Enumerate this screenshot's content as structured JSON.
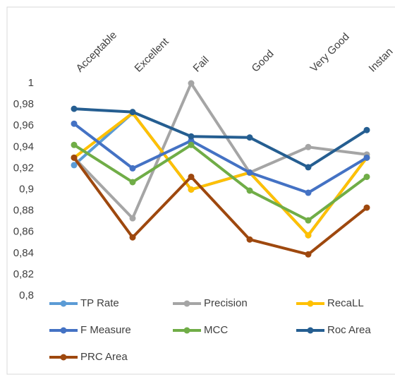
{
  "chart_data": {
    "type": "line",
    "categories": [
      "Acceptable",
      "Excellent",
      "Fail",
      "Good",
      "Very Good",
      "Instan"
    ],
    "series": [
      {
        "name": "TP Rate",
        "color": "#5b9bd5",
        "values": [
          0.923,
          0.972,
          0.9,
          0.916,
          0.857,
          0.93
        ]
      },
      {
        "name": "Precision",
        "color": "#a5a5a5",
        "values": [
          0.93,
          0.873,
          1,
          0.916,
          0.94,
          0.933
        ]
      },
      {
        "name": "RecaLL",
        "color": "#ffc000",
        "values": [
          0.93,
          0.972,
          0.9,
          0.916,
          0.857,
          0.93
        ]
      },
      {
        "name": "F Measure",
        "color": "#4472c4",
        "values": [
          0.962,
          0.92,
          0.946,
          0.916,
          0.897,
          0.93
        ]
      },
      {
        "name": "MCC",
        "color": "#70ad47",
        "values": [
          0.942,
          0.907,
          0.942,
          0.899,
          0.871,
          0.912
        ]
      },
      {
        "name": "Roc Area",
        "color": "#255e91",
        "values": [
          0.976,
          0.973,
          0.95,
          0.949,
          0.921,
          0.956
        ]
      },
      {
        "name": "PRC Area",
        "color": "#9e480e",
        "values": [
          0.93,
          0.855,
          0.912,
          0.853,
          0.839,
          0.883
        ]
      }
    ],
    "ylim": [
      0.8,
      1
    ],
    "yticks": [
      {
        "value": 0.8,
        "label": "0,8"
      },
      {
        "value": 0.82,
        "label": "0,82"
      },
      {
        "value": 0.84,
        "label": "0,84"
      },
      {
        "value": 0.86,
        "label": "0,86"
      },
      {
        "value": 0.88,
        "label": "0,88"
      },
      {
        "value": 0.9,
        "label": "0,9"
      },
      {
        "value": 0.92,
        "label": "0,92"
      },
      {
        "value": 0.94,
        "label": "0,94"
      },
      {
        "value": 0.96,
        "label": "0,96"
      },
      {
        "value": 0.98,
        "label": "0,98"
      },
      1
    ],
    "grid": false,
    "legend": "bottom"
  }
}
